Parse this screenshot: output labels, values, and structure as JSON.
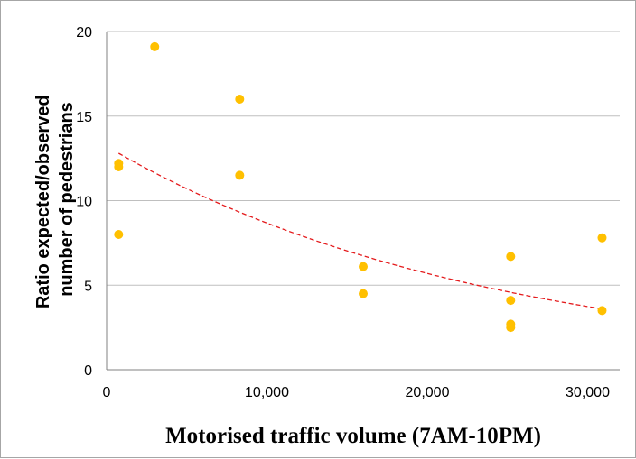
{
  "chart_data": {
    "type": "scatter",
    "title": "",
    "xlabel": "Motorised traffic volume (7AM-10PM)",
    "ylabel_lines": [
      "Ratio expected/observed",
      "number of pedestrians"
    ],
    "xlim": [
      0,
      32000
    ],
    "ylim": [
      0,
      20
    ],
    "x_ticks": [
      0,
      10000,
      20000,
      30000
    ],
    "x_tick_labels": [
      "0",
      "10,000",
      "20,000",
      "30,000"
    ],
    "y_ticks": [
      0,
      5,
      10,
      15,
      20
    ],
    "y_tick_labels": [
      "0",
      "5",
      "10",
      "15",
      "20"
    ],
    "grid": "horizontal",
    "legend": "none",
    "point_color": "#FFC000",
    "trendline_color": "#E41A1C",
    "series": [
      {
        "points": [
          {
            "x": 750,
            "y": 12.2
          },
          {
            "x": 750,
            "y": 12.0
          },
          {
            "x": 750,
            "y": 8.0
          },
          {
            "x": 3000,
            "y": 19.1
          },
          {
            "x": 8300,
            "y": 16.0
          },
          {
            "x": 8300,
            "y": 11.5
          },
          {
            "x": 16000,
            "y": 6.1
          },
          {
            "x": 16000,
            "y": 4.5
          },
          {
            "x": 25200,
            "y": 6.7
          },
          {
            "x": 25200,
            "y": 4.1
          },
          {
            "x": 25200,
            "y": 2.7
          },
          {
            "x": 25200,
            "y": 2.5
          },
          {
            "x": 30900,
            "y": 7.8
          },
          {
            "x": 30900,
            "y": 3.5
          }
        ]
      }
    ],
    "trendline": {
      "type": "exponential",
      "x_range": [
        750,
        30900
      ],
      "y_range": [
        12.8,
        3.6
      ]
    }
  }
}
